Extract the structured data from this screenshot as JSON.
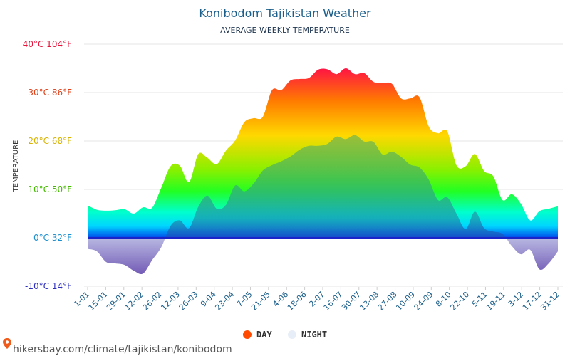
{
  "chart_data": {
    "type": "area",
    "title": "Konibodom Tajikistan Weather",
    "subtitle": "AVERAGE WEEKLY TEMPERATURE",
    "ylabel": "TEMPERATURE",
    "xlabel": "",
    "ylim": [
      -10,
      40
    ],
    "y_ticks": [
      {
        "value": 40,
        "label": "40°C 104°F",
        "color": "#e8133a"
      },
      {
        "value": 30,
        "label": "30°C 86°F",
        "color": "#e0421a"
      },
      {
        "value": 20,
        "label": "20°C 68°F",
        "color": "#d9b400"
      },
      {
        "value": 10,
        "label": "10°C 50°F",
        "color": "#44bb00"
      },
      {
        "value": 0,
        "label": "0°C 32°F",
        "color": "#1a8fd0"
      },
      {
        "value": -10,
        "label": "-10°C 14°F",
        "color": "#2f2fbf"
      }
    ],
    "x_tick_labels": [
      "1-01",
      "15-01",
      "29-01",
      "12-02",
      "26-02",
      "12-03",
      "26-03",
      "9-04",
      "23-04",
      "7-05",
      "21-05",
      "4-06",
      "18-06",
      "2-07",
      "16-07",
      "30-07",
      "13-08",
      "27-08",
      "10-09",
      "24-09",
      "8-10",
      "22-10",
      "5-11",
      "19-11",
      "3-12",
      "17-12",
      "31-12"
    ],
    "series": [
      {
        "name": "DAY",
        "color": "#ff4a00",
        "values": [
          6.7,
          5.8,
          5.6,
          5.7,
          5.9,
          5.0,
          6.3,
          6.2,
          10.4,
          14.8,
          14.9,
          11.5,
          17.3,
          16.5,
          15.2,
          18.0,
          20.1,
          23.9,
          24.7,
          25.0,
          30.5,
          30.5,
          32.5,
          32.8,
          33.0,
          34.7,
          34.8,
          33.8,
          35.0,
          33.8,
          34.0,
          32.2,
          32.0,
          31.8,
          28.8,
          28.8,
          29.0,
          23.0,
          21.6,
          22.0,
          15.0,
          14.8,
          17.3,
          13.8,
          12.7,
          7.8,
          9.0,
          7.0,
          3.6,
          5.5,
          6.0,
          6.5
        ]
      },
      {
        "name": "NIGHT",
        "color": "#e8eef8",
        "values": [
          -2.3,
          -2.8,
          -5.0,
          -5.3,
          -5.6,
          -6.8,
          -7.4,
          -4.6,
          -1.9,
          2.5,
          3.6,
          2.0,
          6.4,
          8.7,
          6.0,
          6.8,
          10.8,
          9.6,
          11.2,
          13.9,
          15.0,
          15.8,
          16.8,
          18.2,
          19.0,
          19.0,
          19.4,
          20.9,
          20.4,
          21.2,
          19.9,
          19.8,
          17.2,
          17.8,
          16.7,
          15.1,
          14.5,
          12.0,
          7.8,
          8.4,
          5.0,
          1.8,
          5.4,
          2.0,
          1.3,
          0.8,
          -1.7,
          -3.4,
          -2.5,
          -6.5,
          -5.3,
          -2.8
        ]
      }
    ],
    "legend_position": "bottom",
    "grid": true
  },
  "source_text": "hikersbay.com/climate/tajikistan/konibodom",
  "colors": {
    "pin": "#f05a1a",
    "day_legend": "#ff4a00",
    "night_legend": "#e8eef8",
    "zero_line": "#1a24c8"
  },
  "icons": {
    "source": "map-pin-icon"
  }
}
